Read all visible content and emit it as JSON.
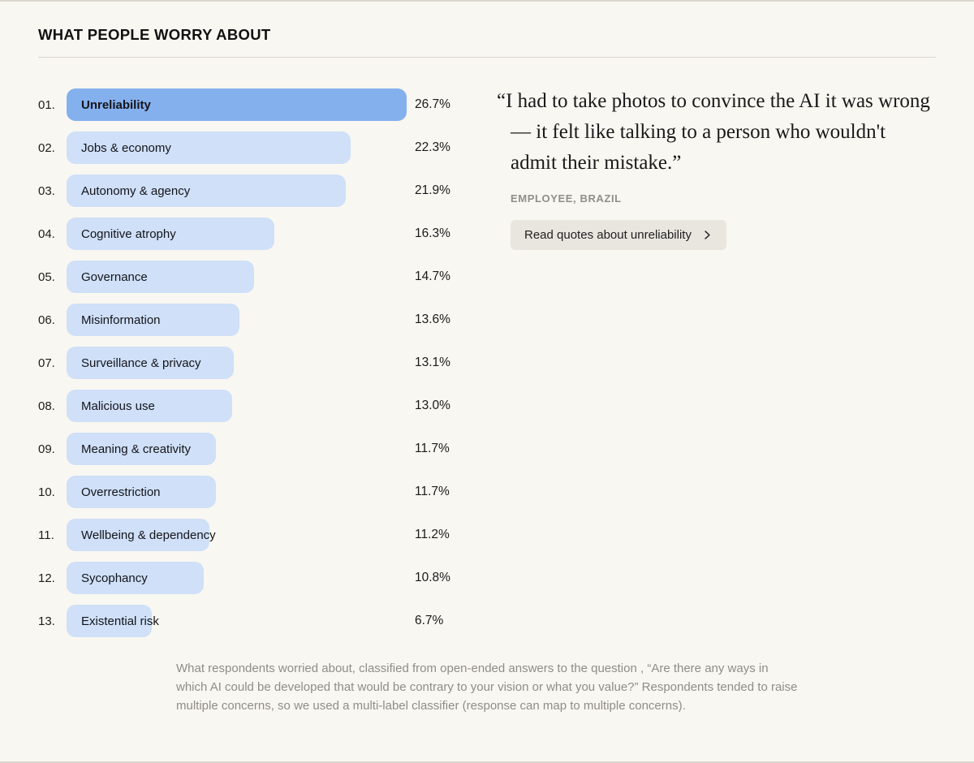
{
  "page": {
    "title": "WHAT PEOPLE WORRY ABOUT"
  },
  "chart_data": {
    "type": "bar",
    "orientation": "horizontal",
    "title": "WHAT PEOPLE WORRY ABOUT",
    "unit": "%",
    "xlim": [
      0,
      26.7
    ],
    "grid": false,
    "legend": false,
    "highlight_index": 0,
    "bar_color": "#cfe0f8",
    "highlight_color": "#85b0ee",
    "categories": [
      "Unreliability",
      "Jobs & economy",
      "Autonomy & agency",
      "Cognitive atrophy",
      "Governance",
      "Misinformation",
      "Surveillance & privacy",
      "Malicious use",
      "Meaning & creativity",
      "Overrestriction",
      "Wellbeing & dependency",
      "Sycophancy",
      "Existential risk"
    ],
    "values": [
      26.7,
      22.3,
      21.9,
      16.3,
      14.7,
      13.6,
      13.1,
      13.0,
      11.7,
      11.7,
      11.2,
      10.8,
      6.7
    ],
    "items": [
      {
        "rank": "01.",
        "label": "Unreliability",
        "value": 26.7,
        "value_label": "26.7%"
      },
      {
        "rank": "02.",
        "label": "Jobs & economy",
        "value": 22.3,
        "value_label": "22.3%"
      },
      {
        "rank": "03.",
        "label": "Autonomy & agency",
        "value": 21.9,
        "value_label": "21.9%"
      },
      {
        "rank": "04.",
        "label": "Cognitive atrophy",
        "value": 16.3,
        "value_label": "16.3%"
      },
      {
        "rank": "05.",
        "label": "Governance",
        "value": 14.7,
        "value_label": "14.7%"
      },
      {
        "rank": "06.",
        "label": "Misinformation",
        "value": 13.6,
        "value_label": "13.6%"
      },
      {
        "rank": "07.",
        "label": "Surveillance & privacy",
        "value": 13.1,
        "value_label": "13.1%"
      },
      {
        "rank": "08.",
        "label": "Malicious use",
        "value": 13.0,
        "value_label": "13.0%"
      },
      {
        "rank": "09.",
        "label": "Meaning & creativity",
        "value": 11.7,
        "value_label": "11.7%"
      },
      {
        "rank": "10.",
        "label": "Overrestriction",
        "value": 11.7,
        "value_label": "11.7%"
      },
      {
        "rank": "11.",
        "label": "Wellbeing & dependency",
        "value": 11.2,
        "value_label": "11.2%"
      },
      {
        "rank": "12.",
        "label": "Sycophancy",
        "value": 10.8,
        "value_label": "10.8%"
      },
      {
        "rank": "13.",
        "label": "Existential risk",
        "value": 6.7,
        "value_label": "6.7%"
      }
    ]
  },
  "quote_panel": {
    "quote": "“I had to take photos to convince the AI it was wrong — it felt like talking to a person who wouldn't admit their mistake.”",
    "attribution": "EMPLOYEE, BRAZIL",
    "button_label": "Read quotes about unreliability",
    "chevron_icon": "chevron-right"
  },
  "footnote": "What respondents worried about, classified from open-ended answers to the question , “Are there any ways in which AI could be developed that would be contrary to your vision or what you value?” Respondents tended to raise multiple concerns, so we used a multi-label classifier (response can map to multiple concerns)."
}
